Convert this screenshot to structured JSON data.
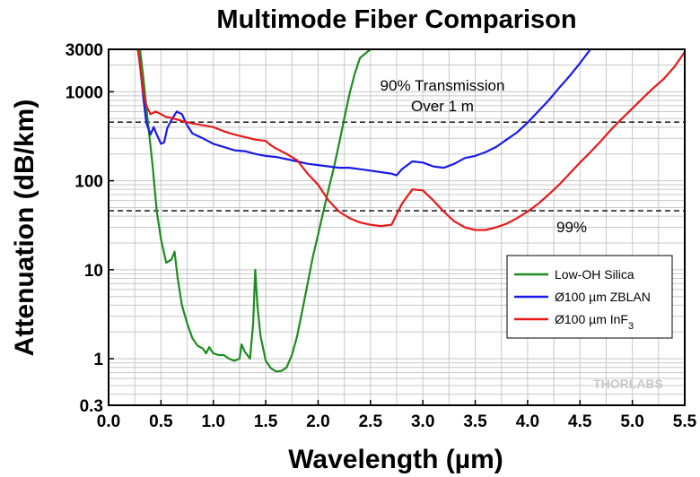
{
  "chart_data": {
    "type": "line",
    "title": "Multimode Fiber Comparison",
    "xlabel": "Wavelength (µm)",
    "ylabel": "Attenuation (dB/km)",
    "x_scale": "linear",
    "y_scale": "log",
    "xlim": [
      0.0,
      5.5
    ],
    "ylim": [
      0.3,
      3000
    ],
    "grid": true,
    "x_ticks": [
      "0.0",
      "0.5",
      "1.0",
      "1.5",
      "2.0",
      "2.5",
      "3.0",
      "3.5",
      "4.0",
      "4.5",
      "5.0",
      "5.5"
    ],
    "y_ticks": [
      "0.3",
      "1",
      "10",
      "100",
      "1000",
      "3000"
    ],
    "legend_position": "bottom-right",
    "series": [
      {
        "name": "Low-OH Silica",
        "color": "#1f8c1f",
        "points": [
          [
            0.3,
            3000
          ],
          [
            0.33,
            1500
          ],
          [
            0.38,
            400
          ],
          [
            0.42,
            150
          ],
          [
            0.46,
            45
          ],
          [
            0.5,
            22
          ],
          [
            0.55,
            12
          ],
          [
            0.6,
            13
          ],
          [
            0.63,
            16
          ],
          [
            0.66,
            8
          ],
          [
            0.7,
            4
          ],
          [
            0.75,
            2.5
          ],
          [
            0.8,
            1.7
          ],
          [
            0.85,
            1.4
          ],
          [
            0.9,
            1.3
          ],
          [
            0.93,
            1.15
          ],
          [
            0.96,
            1.35
          ],
          [
            1.0,
            1.15
          ],
          [
            1.05,
            1.1
          ],
          [
            1.1,
            1.1
          ],
          [
            1.15,
            1.0
          ],
          [
            1.2,
            0.95
          ],
          [
            1.25,
            1.0
          ],
          [
            1.27,
            1.45
          ],
          [
            1.3,
            1.2
          ],
          [
            1.35,
            1.0
          ],
          [
            1.38,
            2.5
          ],
          [
            1.4,
            10
          ],
          [
            1.42,
            4
          ],
          [
            1.45,
            1.8
          ],
          [
            1.5,
            0.95
          ],
          [
            1.55,
            0.78
          ],
          [
            1.6,
            0.72
          ],
          [
            1.65,
            0.73
          ],
          [
            1.7,
            0.8
          ],
          [
            1.75,
            1.1
          ],
          [
            1.8,
            1.8
          ],
          [
            1.85,
            3.5
          ],
          [
            1.9,
            7
          ],
          [
            1.95,
            14
          ],
          [
            2.0,
            25
          ],
          [
            2.05,
            45
          ],
          [
            2.1,
            80
          ],
          [
            2.15,
            140
          ],
          [
            2.2,
            260
          ],
          [
            2.25,
            500
          ],
          [
            2.3,
            950
          ],
          [
            2.35,
            1600
          ],
          [
            2.4,
            2400
          ],
          [
            2.5,
            3000
          ]
        ]
      },
      {
        "name": "Ø100 µm ZBLAN",
        "color": "#1a1ae6",
        "points": [
          [
            0.28,
            3000
          ],
          [
            0.3,
            2000
          ],
          [
            0.33,
            900
          ],
          [
            0.36,
            450
          ],
          [
            0.4,
            330
          ],
          [
            0.43,
            400
          ],
          [
            0.46,
            330
          ],
          [
            0.5,
            260
          ],
          [
            0.53,
            270
          ],
          [
            0.56,
            390
          ],
          [
            0.6,
            480
          ],
          [
            0.65,
            600
          ],
          [
            0.7,
            560
          ],
          [
            0.75,
            420
          ],
          [
            0.8,
            340
          ],
          [
            0.9,
            300
          ],
          [
            1.0,
            260
          ],
          [
            1.1,
            240
          ],
          [
            1.2,
            220
          ],
          [
            1.3,
            215
          ],
          [
            1.4,
            200
          ],
          [
            1.5,
            190
          ],
          [
            1.6,
            185
          ],
          [
            1.7,
            175
          ],
          [
            1.8,
            165
          ],
          [
            1.9,
            155
          ],
          [
            2.0,
            150
          ],
          [
            2.1,
            145
          ],
          [
            2.2,
            140
          ],
          [
            2.3,
            140
          ],
          [
            2.4,
            135
          ],
          [
            2.5,
            130
          ],
          [
            2.6,
            125
          ],
          [
            2.7,
            120
          ],
          [
            2.75,
            115
          ],
          [
            2.8,
            135
          ],
          [
            2.9,
            165
          ],
          [
            3.0,
            160
          ],
          [
            3.1,
            145
          ],
          [
            3.2,
            140
          ],
          [
            3.3,
            155
          ],
          [
            3.4,
            180
          ],
          [
            3.5,
            190
          ],
          [
            3.6,
            210
          ],
          [
            3.7,
            240
          ],
          [
            3.8,
            290
          ],
          [
            3.9,
            350
          ],
          [
            4.0,
            450
          ],
          [
            4.1,
            600
          ],
          [
            4.2,
            800
          ],
          [
            4.3,
            1100
          ],
          [
            4.4,
            1500
          ],
          [
            4.5,
            2100
          ],
          [
            4.6,
            3000
          ]
        ]
      },
      {
        "name": "Ø100 µm InF3",
        "color": "#e61919",
        "points": [
          [
            0.28,
            3000
          ],
          [
            0.3,
            2000
          ],
          [
            0.33,
            1000
          ],
          [
            0.36,
            700
          ],
          [
            0.4,
            560
          ],
          [
            0.45,
            600
          ],
          [
            0.5,
            560
          ],
          [
            0.55,
            520
          ],
          [
            0.6,
            510
          ],
          [
            0.7,
            470
          ],
          [
            0.8,
            440
          ],
          [
            0.9,
            420
          ],
          [
            1.0,
            400
          ],
          [
            1.1,
            360
          ],
          [
            1.2,
            330
          ],
          [
            1.3,
            310
          ],
          [
            1.4,
            290
          ],
          [
            1.5,
            280
          ],
          [
            1.55,
            250
          ],
          [
            1.6,
            230
          ],
          [
            1.7,
            200
          ],
          [
            1.8,
            170
          ],
          [
            1.9,
            120
          ],
          [
            2.0,
            90
          ],
          [
            2.1,
            60
          ],
          [
            2.2,
            45
          ],
          [
            2.3,
            38
          ],
          [
            2.4,
            34
          ],
          [
            2.5,
            32
          ],
          [
            2.6,
            31
          ],
          [
            2.7,
            32
          ],
          [
            2.8,
            55
          ],
          [
            2.9,
            80
          ],
          [
            3.0,
            78
          ],
          [
            3.1,
            60
          ],
          [
            3.2,
            45
          ],
          [
            3.3,
            35
          ],
          [
            3.4,
            30
          ],
          [
            3.5,
            28
          ],
          [
            3.6,
            28
          ],
          [
            3.7,
            30
          ],
          [
            3.8,
            33
          ],
          [
            3.9,
            38
          ],
          [
            4.0,
            45
          ],
          [
            4.1,
            55
          ],
          [
            4.2,
            70
          ],
          [
            4.3,
            90
          ],
          [
            4.4,
            120
          ],
          [
            4.5,
            160
          ],
          [
            4.6,
            210
          ],
          [
            4.7,
            280
          ],
          [
            4.8,
            380
          ],
          [
            4.9,
            500
          ],
          [
            5.0,
            650
          ],
          [
            5.1,
            850
          ],
          [
            5.2,
            1100
          ],
          [
            5.3,
            1400
          ],
          [
            5.4,
            1900
          ],
          [
            5.5,
            2800
          ]
        ]
      }
    ],
    "reference_lines": [
      {
        "y": 456,
        "style": "dashed",
        "color": "#000000"
      },
      {
        "y": 46,
        "style": "dashed",
        "color": "#000000"
      }
    ],
    "annotations": {
      "line1": "90% Transmission",
      "line2": "Over 1 m",
      "pct99": "99%"
    },
    "watermark": "THORLABS"
  }
}
